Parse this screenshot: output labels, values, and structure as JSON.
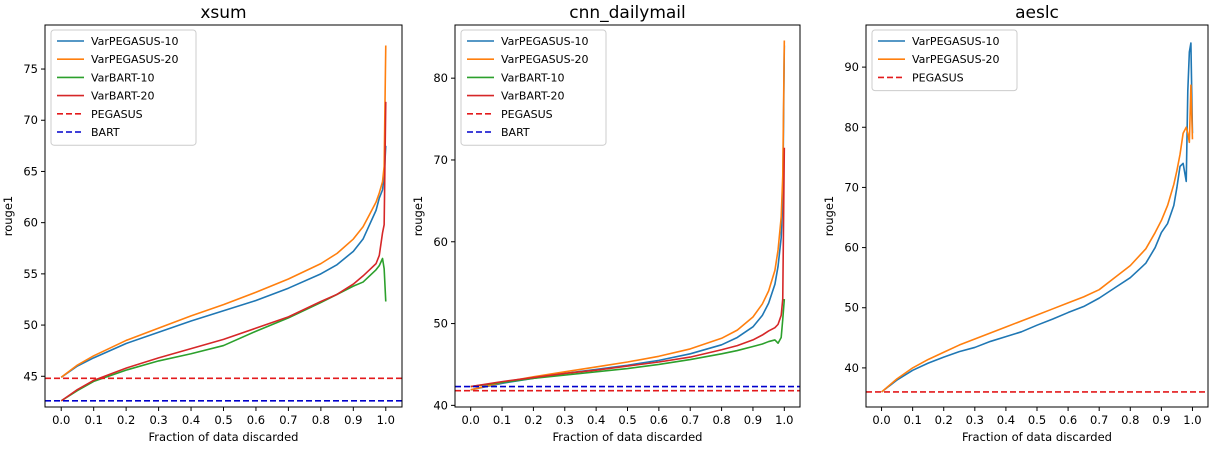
{
  "chart_data": [
    {
      "type": "line",
      "title": "xsum",
      "xlabel": "Fraction of data discarded",
      "ylabel": "rouge1",
      "xlim": [
        -0.05,
        1.05
      ],
      "ylim": [
        42.0,
        79.3
      ],
      "xticks": [
        0.0,
        0.1,
        0.2,
        0.3,
        0.4,
        0.5,
        0.6,
        0.7,
        0.8,
        0.9,
        1.0
      ],
      "xtick_labels": [
        "0.0",
        "0.1",
        "0.2",
        "0.3",
        "0.4",
        "0.5",
        "0.6",
        "0.7",
        "0.8",
        "0.9",
        "1.0"
      ],
      "yticks": [
        45,
        50,
        55,
        60,
        65,
        70,
        75
      ],
      "ytick_labels": [
        "45",
        "50",
        "55",
        "60",
        "65",
        "70",
        "75"
      ],
      "legend_position": "top-left",
      "grid": false,
      "series": [
        {
          "name": "VarPEGASUS-10",
          "color": "#1f77b4",
          "style": "solid",
          "x": [
            0.0,
            0.05,
            0.1,
            0.2,
            0.3,
            0.4,
            0.5,
            0.6,
            0.7,
            0.8,
            0.85,
            0.9,
            0.93,
            0.95,
            0.97,
            0.98,
            0.99,
            0.995,
            1.0
          ],
          "y": [
            44.9,
            46.0,
            46.8,
            48.2,
            49.3,
            50.4,
            51.4,
            52.4,
            53.6,
            55.0,
            55.9,
            57.2,
            58.4,
            59.8,
            61.2,
            62.4,
            63.2,
            64.5,
            67.5
          ]
        },
        {
          "name": "VarPEGASUS-20",
          "color": "#ff7f0e",
          "style": "solid",
          "x": [
            0.0,
            0.05,
            0.1,
            0.2,
            0.3,
            0.4,
            0.5,
            0.6,
            0.7,
            0.8,
            0.85,
            0.9,
            0.93,
            0.95,
            0.97,
            0.98,
            0.99,
            0.995,
            1.0
          ],
          "y": [
            44.9,
            46.1,
            47.0,
            48.5,
            49.7,
            50.9,
            52.0,
            53.2,
            54.5,
            56.0,
            57.0,
            58.4,
            59.6,
            60.8,
            62.0,
            62.9,
            64.0,
            65.5,
            77.3
          ]
        },
        {
          "name": "VarBART-10",
          "color": "#2ca02c",
          "style": "solid",
          "x": [
            0.0,
            0.05,
            0.1,
            0.2,
            0.3,
            0.4,
            0.5,
            0.6,
            0.7,
            0.8,
            0.85,
            0.9,
            0.93,
            0.95,
            0.97,
            0.98,
            0.99,
            0.995,
            1.0
          ],
          "y": [
            42.6,
            43.6,
            44.5,
            45.6,
            46.5,
            47.2,
            48.0,
            49.4,
            50.7,
            52.2,
            53.0,
            53.8,
            54.2,
            54.8,
            55.4,
            55.8,
            56.5,
            55.5,
            52.3
          ]
        },
        {
          "name": "VarBART-20",
          "color": "#d62728",
          "style": "solid",
          "x": [
            0.0,
            0.05,
            0.1,
            0.2,
            0.3,
            0.4,
            0.5,
            0.6,
            0.7,
            0.8,
            0.85,
            0.9,
            0.93,
            0.95,
            0.97,
            0.98,
            0.99,
            0.995,
            1.0
          ],
          "y": [
            42.6,
            43.7,
            44.6,
            45.8,
            46.8,
            47.7,
            48.6,
            49.7,
            50.8,
            52.3,
            53.0,
            54.0,
            54.8,
            55.4,
            56.0,
            56.8,
            59.0,
            59.8,
            71.8
          ]
        },
        {
          "name": "PEGASUS",
          "color": "#e31a1c",
          "style": "dashed",
          "x": [
            -0.05,
            1.05
          ],
          "y": [
            44.8,
            44.8
          ]
        },
        {
          "name": "BART",
          "color": "#0000cc",
          "style": "dashed",
          "x": [
            -0.05,
            1.05
          ],
          "y": [
            42.6,
            42.6
          ]
        }
      ]
    },
    {
      "type": "line",
      "title": "cnn_dailymail",
      "xlabel": "Fraction of data discarded",
      "ylabel": "rouge1",
      "xlim": [
        -0.05,
        1.05
      ],
      "ylim": [
        39.8,
        86.5
      ],
      "xticks": [
        0.0,
        0.1,
        0.2,
        0.3,
        0.4,
        0.5,
        0.6,
        0.7,
        0.8,
        0.9,
        1.0
      ],
      "xtick_labels": [
        "0.0",
        "0.1",
        "0.2",
        "0.3",
        "0.4",
        "0.5",
        "0.6",
        "0.7",
        "0.8",
        "0.9",
        "1.0"
      ],
      "yticks": [
        40,
        50,
        60,
        70,
        80
      ],
      "ytick_labels": [
        "40",
        "50",
        "60",
        "70",
        "80"
      ],
      "legend_position": "top-left",
      "grid": false,
      "series": [
        {
          "name": "VarPEGASUS-10",
          "color": "#1f77b4",
          "style": "solid",
          "x": [
            0.0,
            0.1,
            0.2,
            0.3,
            0.4,
            0.5,
            0.6,
            0.7,
            0.8,
            0.85,
            0.9,
            0.93,
            0.95,
            0.97,
            0.98,
            0.99,
            0.995,
            1.0
          ],
          "y": [
            41.9,
            42.7,
            43.3,
            43.9,
            44.4,
            44.9,
            45.5,
            46.3,
            47.4,
            48.3,
            49.6,
            51.0,
            52.5,
            54.8,
            57.0,
            60.5,
            65.0,
            84.0
          ]
        },
        {
          "name": "VarPEGASUS-20",
          "color": "#ff7f0e",
          "style": "solid",
          "x": [
            0.0,
            0.1,
            0.2,
            0.3,
            0.4,
            0.5,
            0.6,
            0.7,
            0.8,
            0.85,
            0.9,
            0.93,
            0.95,
            0.97,
            0.98,
            0.99,
            0.995,
            1.0
          ],
          "y": [
            41.9,
            42.8,
            43.5,
            44.1,
            44.7,
            45.3,
            46.0,
            46.9,
            48.2,
            49.2,
            50.8,
            52.4,
            54.0,
            56.5,
            59.0,
            63.0,
            68.0,
            84.6
          ]
        },
        {
          "name": "VarBART-10",
          "color": "#2ca02c",
          "style": "solid",
          "x": [
            0.0,
            0.1,
            0.2,
            0.3,
            0.4,
            0.5,
            0.6,
            0.7,
            0.8,
            0.85,
            0.9,
            0.93,
            0.95,
            0.97,
            0.98,
            0.99,
            0.995,
            1.0
          ],
          "y": [
            42.3,
            42.8,
            43.3,
            43.7,
            44.1,
            44.5,
            45.0,
            45.6,
            46.3,
            46.7,
            47.2,
            47.5,
            47.8,
            48.0,
            47.6,
            48.3,
            50.5,
            53.0
          ]
        },
        {
          "name": "VarBART-20",
          "color": "#d62728",
          "style": "solid",
          "x": [
            0.0,
            0.1,
            0.2,
            0.3,
            0.4,
            0.5,
            0.6,
            0.7,
            0.8,
            0.85,
            0.9,
            0.93,
            0.95,
            0.97,
            0.98,
            0.99,
            0.995,
            1.0
          ],
          "y": [
            42.3,
            42.9,
            43.4,
            43.9,
            44.3,
            44.8,
            45.3,
            45.9,
            46.8,
            47.3,
            48.0,
            48.6,
            49.1,
            49.5,
            49.9,
            51.0,
            53.0,
            71.5
          ]
        },
        {
          "name": "PEGASUS",
          "color": "#e31a1c",
          "style": "dashed",
          "x": [
            -0.05,
            1.05
          ],
          "y": [
            41.8,
            41.8
          ]
        },
        {
          "name": "BART",
          "color": "#0000cc",
          "style": "dashed",
          "x": [
            -0.05,
            1.05
          ],
          "y": [
            42.3,
            42.3
          ]
        }
      ]
    },
    {
      "type": "line",
      "title": "aeslc",
      "xlabel": "Fraction of data discarded",
      "ylabel": "rouge1",
      "xlim": [
        -0.05,
        1.05
      ],
      "ylim": [
        33.5,
        97.0
      ],
      "xticks": [
        0.0,
        0.1,
        0.2,
        0.3,
        0.4,
        0.5,
        0.6,
        0.7,
        0.8,
        0.9,
        1.0
      ],
      "xtick_labels": [
        "0.0",
        "0.1",
        "0.2",
        "0.3",
        "0.4",
        "0.5",
        "0.6",
        "0.7",
        "0.8",
        "0.9",
        "1.0"
      ],
      "yticks": [
        40,
        50,
        60,
        70,
        80,
        90
      ],
      "ytick_labels": [
        "40",
        "50",
        "60",
        "70",
        "80",
        "90"
      ],
      "legend_position": "top-left",
      "grid": false,
      "series": [
        {
          "name": "VarPEGASUS-10",
          "color": "#1f77b4",
          "style": "solid",
          "x": [
            0.0,
            0.05,
            0.1,
            0.15,
            0.2,
            0.25,
            0.3,
            0.35,
            0.4,
            0.45,
            0.5,
            0.55,
            0.6,
            0.65,
            0.7,
            0.75,
            0.8,
            0.85,
            0.88,
            0.9,
            0.92,
            0.94,
            0.95,
            0.96,
            0.97,
            0.98,
            0.985,
            0.99,
            0.995,
            1.0
          ],
          "y": [
            36.0,
            38.0,
            39.6,
            40.8,
            41.8,
            42.7,
            43.4,
            44.4,
            45.2,
            46.0,
            47.1,
            48.1,
            49.2,
            50.2,
            51.6,
            53.3,
            55.0,
            57.4,
            60.0,
            62.5,
            64.0,
            67.0,
            70.0,
            73.5,
            74.0,
            71.0,
            86.0,
            92.5,
            94.0,
            79.0
          ]
        },
        {
          "name": "VarPEGASUS-20",
          "color": "#ff7f0e",
          "style": "solid",
          "x": [
            0.0,
            0.05,
            0.1,
            0.15,
            0.2,
            0.25,
            0.3,
            0.35,
            0.4,
            0.45,
            0.5,
            0.55,
            0.6,
            0.65,
            0.7,
            0.75,
            0.8,
            0.85,
            0.88,
            0.9,
            0.92,
            0.94,
            0.95,
            0.96,
            0.97,
            0.98,
            0.985,
            0.99,
            0.995,
            1.0
          ],
          "y": [
            36.0,
            38.2,
            40.0,
            41.4,
            42.6,
            43.8,
            44.8,
            45.8,
            46.8,
            47.8,
            48.8,
            49.8,
            50.8,
            51.8,
            53.0,
            55.0,
            57.0,
            59.8,
            62.5,
            64.5,
            67.0,
            70.5,
            72.8,
            75.5,
            79.0,
            80.0,
            79.0,
            77.5,
            87.0,
            78.0
          ]
        },
        {
          "name": "PEGASUS",
          "color": "#e31a1c",
          "style": "dashed",
          "x": [
            -0.05,
            1.05
          ],
          "y": [
            36.0,
            36.0
          ]
        }
      ]
    }
  ]
}
